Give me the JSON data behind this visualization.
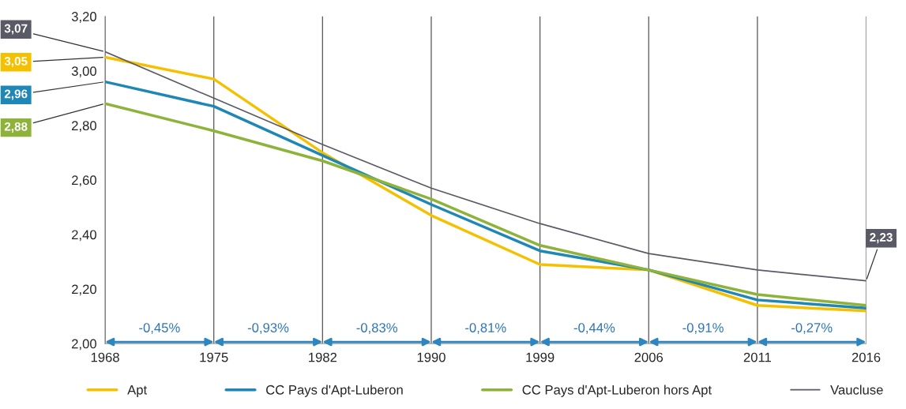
{
  "chart_data": {
    "type": "line",
    "categories": [
      "1968",
      "1975",
      "1982",
      "1990",
      "1999",
      "2006",
      "2011",
      "2016"
    ],
    "series": [
      {
        "name": "Apt",
        "color": "#f5c000",
        "values": [
          3.05,
          2.97,
          2.7,
          2.47,
          2.29,
          2.27,
          2.14,
          2.12
        ],
        "value_labels": [
          "3,05",
          null,
          null,
          null,
          null,
          null,
          null,
          null
        ]
      },
      {
        "name": "CC Pays d'Apt-Luberon",
        "color": "#1f87b5",
        "values": [
          2.96,
          2.87,
          2.69,
          2.51,
          2.34,
          2.27,
          2.16,
          2.13
        ],
        "value_labels": [
          "2,96",
          null,
          null,
          null,
          null,
          null,
          null,
          null
        ]
      },
      {
        "name": "CC Pays d'Apt-Luberon hors Apt",
        "color": "#8db33a",
        "values": [
          2.88,
          2.78,
          2.67,
          2.53,
          2.36,
          2.27,
          2.18,
          2.14
        ],
        "value_labels": [
          "2,88",
          null,
          null,
          null,
          null,
          null,
          null,
          null
        ]
      },
      {
        "name": "Vaucluse",
        "color": "#5a5a66",
        "values": [
          3.07,
          2.9,
          2.73,
          2.57,
          2.44,
          2.33,
          2.27,
          2.23
        ],
        "value_labels": [
          "3,07",
          null,
          null,
          null,
          null,
          null,
          null,
          "2,23"
        ]
      }
    ],
    "ylim": [
      2.0,
      3.2
    ],
    "yticks": [
      {
        "value": 2.0,
        "label": "2,00"
      },
      {
        "value": 2.2,
        "label": "2,20"
      },
      {
        "value": 2.4,
        "label": "2,40"
      },
      {
        "value": 2.6,
        "label": "2,60"
      },
      {
        "value": 2.8,
        "label": "2,80"
      },
      {
        "value": 3.0,
        "label": "3,00"
      },
      {
        "value": 3.2,
        "label": "3,20"
      }
    ],
    "annotations": [
      "-0,45%",
      "-0,93%",
      "-0,83%",
      "-0,81%",
      "-0,44%",
      "-0,91%",
      "-0,27%"
    ],
    "grid": "x",
    "legend": "bottom",
    "marker": "none",
    "line_style": "solid"
  }
}
